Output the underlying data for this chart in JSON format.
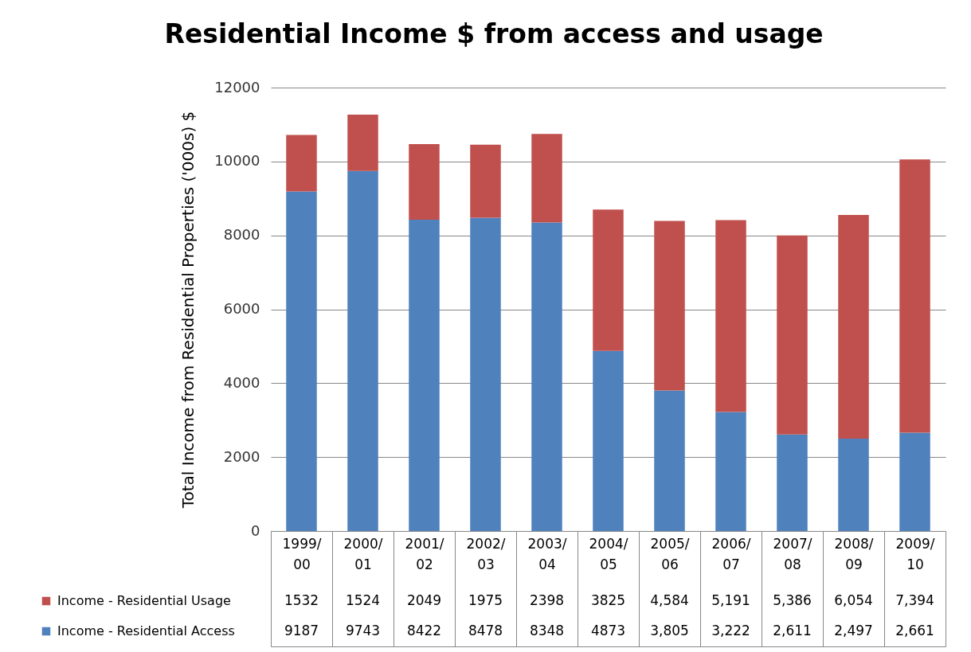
{
  "chart_data": {
    "type": "bar",
    "title": "Residential Income $ from access and usage",
    "ylabel": "Total Income from Residential Properties ('000s) $",
    "categories": [
      "1999/00",
      "2000/01",
      "2001/02",
      "2002/03",
      "2003/04",
      "2004/05",
      "2005/06",
      "2006/07",
      "2007/08",
      "2008/09",
      "2009/10"
    ],
    "stacked": true,
    "ylim": [
      0,
      12000
    ],
    "yticks": [
      0,
      2000,
      4000,
      6000,
      8000,
      10000,
      12000
    ],
    "grid": "y",
    "legend": "bottom",
    "series": [
      {
        "name": "Income - Residential Access",
        "color": "#4f81bd",
        "values": [
          9187,
          9743,
          8422,
          8478,
          8348,
          4873,
          3805,
          3222,
          2611,
          2497,
          2661
        ],
        "value_labels": [
          "9187",
          "9743",
          "8422",
          "8478",
          "8348",
          "4873",
          "3,805",
          "3,222",
          "2,611",
          "2,497",
          "2,661"
        ]
      },
      {
        "name": "Income - Residential Usage",
        "color": "#c0504d",
        "values": [
          1532,
          1524,
          2049,
          1975,
          2398,
          3825,
          4584,
          5191,
          5386,
          6054,
          7394
        ],
        "value_labels": [
          "1532",
          "1524",
          "2049",
          "1975",
          "2398",
          "3825",
          "4,584",
          "5,191",
          "5,386",
          "6,054",
          "7,394"
        ]
      }
    ]
  }
}
